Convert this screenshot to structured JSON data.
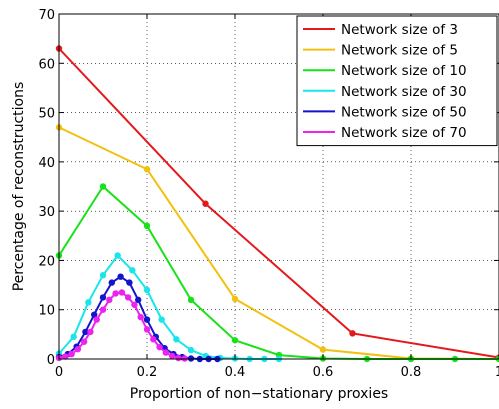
{
  "chart_data": {
    "type": "line",
    "xlabel": "Proportion of non−stationary proxies",
    "ylabel": "Percentage of reconstructions",
    "xlim": [
      0,
      1
    ],
    "ylim": [
      0,
      70
    ],
    "xticks": [
      0,
      0.2,
      0.4,
      0.6,
      0.8,
      1
    ],
    "xtick_labels": [
      "0",
      "0.2",
      "0.4",
      "0.6",
      "0.8",
      "1"
    ],
    "yticks": [
      0,
      10,
      20,
      30,
      40,
      50,
      60,
      70
    ],
    "ytick_labels": [
      "0",
      "10",
      "20",
      "30",
      "40",
      "50",
      "60",
      "70"
    ],
    "grid": true,
    "legend_position": "top-right",
    "series": [
      {
        "name": "Network size of 3",
        "color": "#e31a1c",
        "x": [
          0,
          0.333,
          0.667,
          1
        ],
        "y": [
          63,
          31.5,
          5.2,
          0.3
        ]
      },
      {
        "name": "Network size of 5",
        "color": "#f2c00f",
        "x": [
          0,
          0.2,
          0.4,
          0.6,
          0.8,
          1
        ],
        "y": [
          47,
          38.5,
          12.2,
          1.9,
          0.1,
          0
        ]
      },
      {
        "name": "Network size of 10",
        "color": "#19e119",
        "x": [
          0,
          0.1,
          0.2,
          0.3,
          0.4,
          0.5,
          0.6,
          0.7,
          0.8,
          0.9,
          1
        ],
        "y": [
          21,
          35,
          27,
          12,
          3.8,
          0.8,
          0.1,
          0,
          0,
          0,
          0
        ]
      },
      {
        "name": "Network size of 30",
        "color": "#19e6ea",
        "x": [
          0,
          0.0333,
          0.0667,
          0.1,
          0.1333,
          0.1667,
          0.2,
          0.2333,
          0.2667,
          0.3,
          0.3333,
          0.3667,
          0.4,
          0.4333,
          0.4667,
          0.5
        ],
        "y": [
          1.1,
          4.5,
          11.5,
          17,
          21,
          18,
          14,
          8,
          4,
          1.8,
          0.6,
          0.2,
          0.1,
          0,
          0,
          0
        ]
      },
      {
        "name": "Network size of 50",
        "color": "#1414cc",
        "x": [
          0,
          0.02,
          0.04,
          0.06,
          0.08,
          0.1,
          0.12,
          0.14,
          0.16,
          0.18,
          0.2,
          0.22,
          0.24,
          0.26,
          0.28,
          0.3,
          0.32,
          0.34,
          0.36
        ],
        "y": [
          0.4,
          1,
          2.5,
          5.5,
          9,
          12.5,
          15.5,
          16.7,
          15.5,
          12,
          8,
          4.5,
          2.2,
          1,
          0.4,
          0.1,
          0,
          0,
          0
        ]
      },
      {
        "name": "Network size of 70",
        "color": "#ee22ee",
        "x": [
          0,
          0.0143,
          0.0286,
          0.0429,
          0.0571,
          0.0714,
          0.0857,
          0.1,
          0.1143,
          0.1286,
          0.1429,
          0.1571,
          0.1714,
          0.1857,
          0.2,
          0.2143,
          0.2286,
          0.2429,
          0.2571,
          0.2714,
          0.2857
        ],
        "y": [
          0.2,
          0.5,
          1,
          2,
          3.5,
          5.5,
          8,
          10,
          12,
          13.3,
          13.5,
          12.5,
          11,
          8.5,
          6,
          4,
          2.4,
          1.3,
          0.6,
          0.2,
          0.1
        ]
      }
    ]
  }
}
